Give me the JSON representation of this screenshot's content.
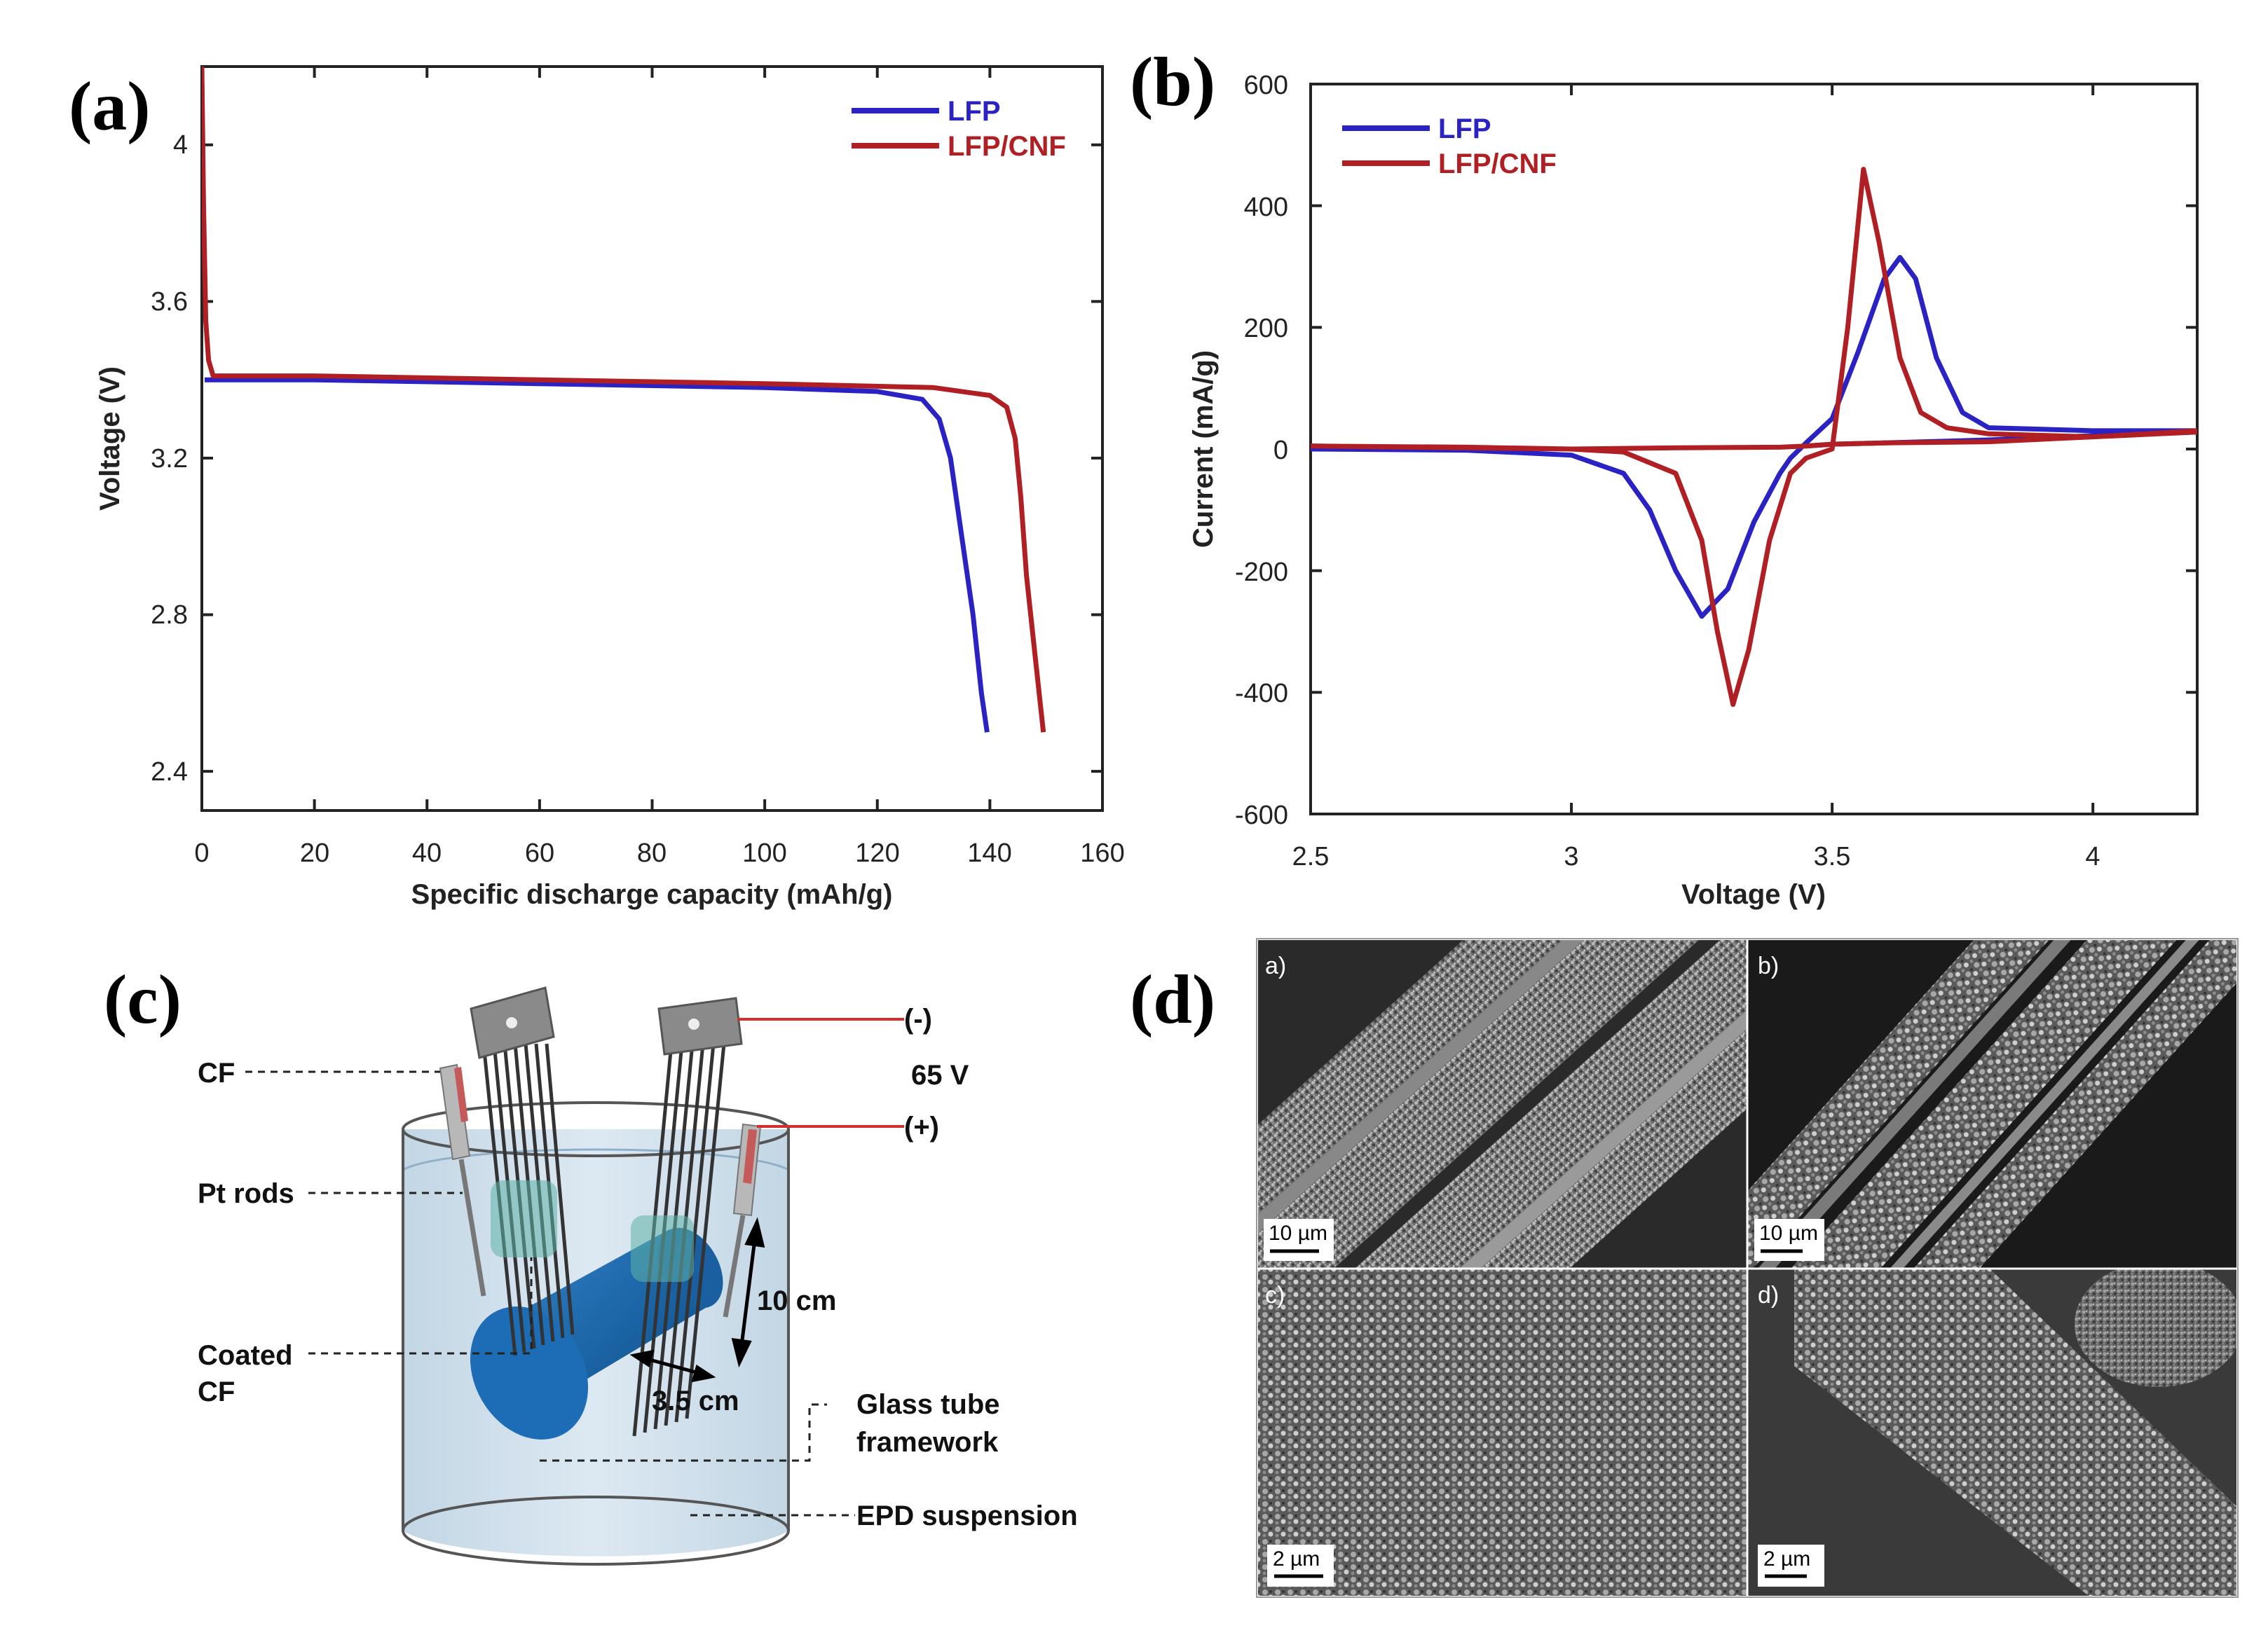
{
  "panels": {
    "a": "(a)",
    "b": "(b)",
    "c": "(c)",
    "d": "(d)"
  },
  "colors": {
    "lfp": "#2b22c4",
    "cnf": "#b01f24"
  },
  "chart_data": [
    {
      "type": "line",
      "panel": "a",
      "xlabel": "Specific discharge capacity (mAh/g)",
      "ylabel": "Voltage (V)",
      "xlim": [
        0,
        160
      ],
      "ylim": [
        2.3,
        4.2
      ],
      "xticks": [
        "0",
        "20",
        "40",
        "60",
        "80",
        "100",
        "120",
        "140",
        "160"
      ],
      "yticks": [
        "2.4",
        "2.8",
        "3.2",
        "3.6",
        "4"
      ],
      "legend_position": "top-right",
      "series": [
        {
          "name": "LFP",
          "x": [
            0.5,
            1,
            2,
            20,
            60,
            100,
            120,
            128,
            131,
            133,
            135,
            137,
            138.5,
            139.5
          ],
          "y": [
            3.4,
            3.4,
            3.4,
            3.4,
            3.39,
            3.38,
            3.37,
            3.35,
            3.3,
            3.2,
            3.0,
            2.8,
            2.6,
            2.5
          ]
        },
        {
          "name": "LFP/CNF",
          "x": [
            0,
            0.3,
            0.7,
            1.2,
            2,
            20,
            60,
            100,
            130,
            140,
            143,
            144.5,
            145.5,
            146.5,
            148,
            149.5
          ],
          "y": [
            4.2,
            3.85,
            3.55,
            3.45,
            3.41,
            3.41,
            3.4,
            3.39,
            3.38,
            3.36,
            3.33,
            3.25,
            3.1,
            2.9,
            2.7,
            2.5
          ]
        }
      ]
    },
    {
      "type": "line",
      "panel": "b",
      "xlabel": "Voltage (V)",
      "ylabel": "Current (mA/g)",
      "xlim": [
        2.5,
        4.2
      ],
      "ylim": [
        -600,
        600
      ],
      "xticks": [
        "2.5",
        "3",
        "3.5",
        "4"
      ],
      "yticks": [
        "600",
        "400",
        "200",
        "0",
        "-200",
        "-400",
        "-600"
      ],
      "legend_position": "top-left",
      "series": [
        {
          "name": "LFP",
          "x": [
            2.5,
            2.8,
            3.0,
            3.1,
            3.15,
            3.2,
            3.25,
            3.3,
            3.35,
            3.4,
            3.42,
            3.45,
            3.5,
            3.55,
            3.6,
            3.63,
            3.66,
            3.7,
            3.75,
            3.8,
            4.0,
            4.2,
            4.2,
            4.0,
            3.8,
            3.6,
            3.5,
            3.45
          ],
          "y": [
            0,
            -2,
            -10,
            -40,
            -100,
            -200,
            -275,
            -230,
            -120,
            -40,
            -15,
            10,
            50,
            160,
            280,
            315,
            280,
            150,
            60,
            35,
            30,
            30,
            28,
            22,
            15,
            10,
            8,
            5
          ]
        },
        {
          "name": "LFP/CNF",
          "x": [
            2.5,
            2.8,
            3.0,
            3.1,
            3.2,
            3.25,
            3.28,
            3.31,
            3.34,
            3.38,
            3.42,
            3.45,
            3.5,
            3.53,
            3.56,
            3.59,
            3.63,
            3.67,
            3.72,
            3.8,
            4.0,
            4.2,
            4.2,
            4.0,
            3.8,
            3.6,
            3.5,
            3.45,
            3.4,
            3.2,
            3.0,
            2.8,
            2.5
          ],
          "y": [
            5,
            3,
            0,
            -5,
            -40,
            -150,
            -300,
            -420,
            -330,
            -150,
            -40,
            -15,
            0,
            200,
            460,
            340,
            150,
            60,
            35,
            25,
            20,
            30,
            28,
            20,
            12,
            10,
            8,
            5,
            3,
            2,
            0,
            2,
            5
          ]
        }
      ]
    }
  ],
  "diagram": {
    "labels": {
      "cf": "CF",
      "pt_rods": "Pt rods",
      "coated": "Coated",
      "coated_cf": "CF",
      "minus": "(-)",
      "voltage": "65 V",
      "plus": "(+)",
      "height": "10 cm",
      "width": "3.5 cm",
      "glass1": "Glass tube",
      "glass2": "framework",
      "epd": "EPD suspension"
    }
  },
  "sem": {
    "tiles": [
      {
        "label": "a)",
        "scale": "10 µm"
      },
      {
        "label": "b)",
        "scale": "10 µm"
      },
      {
        "label": "c)",
        "scale": "2 µm"
      },
      {
        "label": "d)",
        "scale": "2 µm"
      }
    ]
  }
}
